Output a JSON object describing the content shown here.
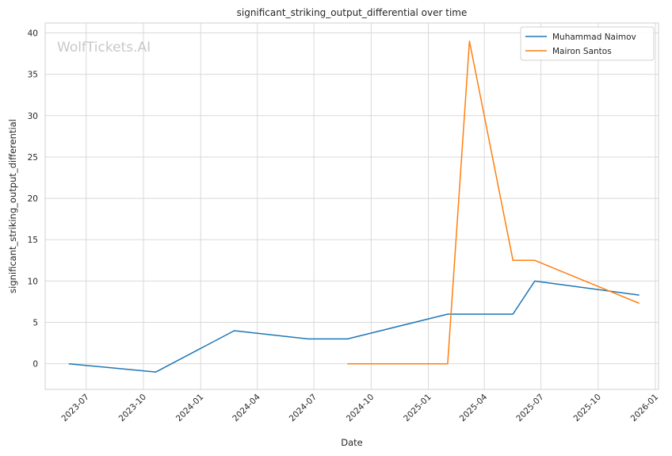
{
  "chart_data": {
    "type": "line",
    "title": "significant_striking_output_differential over time",
    "xlabel": "Date",
    "ylabel": "significant_striking_output_differential",
    "watermark": "WolfTickets.AI",
    "x_ticks": [
      "2023-07",
      "2023-10",
      "2024-01",
      "2024-04",
      "2024-07",
      "2024-10",
      "2025-01",
      "2025-04",
      "2025-07",
      "2025-10",
      "2026-01"
    ],
    "y_ticks": [
      "0",
      "5",
      "10",
      "15",
      "20",
      "25",
      "30",
      "35",
      "40"
    ],
    "xlim": [
      "2023-04-26",
      "2026-01-06"
    ],
    "ylim": [
      -3.1,
      41.2
    ],
    "grid": true,
    "legend_position": "top-right",
    "series": [
      {
        "name": "Muhammad Naimov",
        "color": "#1f77b4",
        "points": [
          {
            "x": "2023-06-03",
            "y": 0
          },
          {
            "x": "2023-10-21",
            "y": -1
          },
          {
            "x": "2024-02-24",
            "y": 4
          },
          {
            "x": "2024-06-22",
            "y": 3
          },
          {
            "x": "2024-08-24",
            "y": 3
          },
          {
            "x": "2025-02-01",
            "y": 6
          },
          {
            "x": "2025-05-17",
            "y": 6
          },
          {
            "x": "2025-06-21",
            "y": 10
          },
          {
            "x": "2025-12-06",
            "y": 8.3
          }
        ]
      },
      {
        "name": "Mairon Santos",
        "color": "#ff7f0e",
        "points": [
          {
            "x": "2024-08-24",
            "y": 0
          },
          {
            "x": "2025-02-01",
            "y": 0
          },
          {
            "x": "2025-03-08",
            "y": 39
          },
          {
            "x": "2025-05-17",
            "y": 12.5
          },
          {
            "x": "2025-06-21",
            "y": 12.5
          },
          {
            "x": "2025-12-06",
            "y": 7.3
          }
        ]
      }
    ]
  }
}
